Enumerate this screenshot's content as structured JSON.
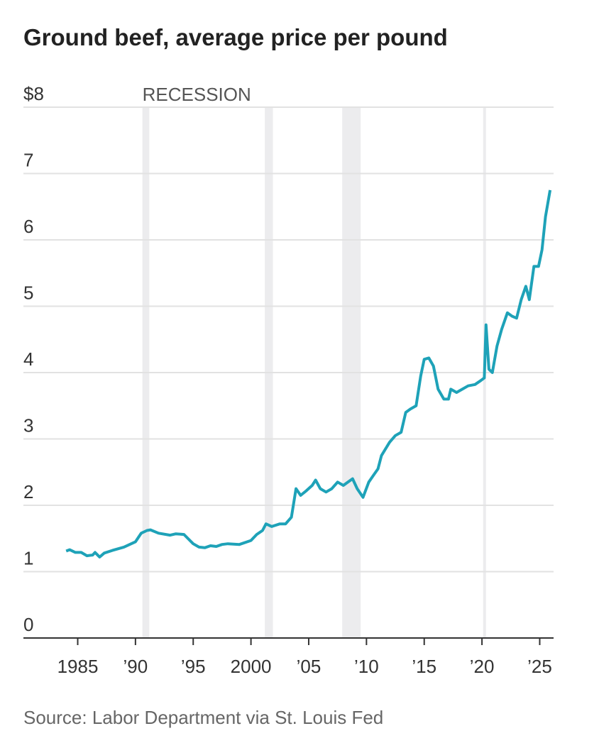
{
  "chart_data": {
    "type": "line",
    "title": "Ground beef, average price per pound",
    "source": "Source: Labor Department via St. Louis Fed",
    "recession_label": "RECESSION",
    "recessions": [
      [
        1990.6,
        1991.2
      ],
      [
        2001.2,
        2001.9
      ],
      [
        2007.9,
        2009.5
      ],
      [
        2020.1,
        2020.35
      ]
    ],
    "xlim": [
      1980.3,
      2026.2
    ],
    "ylim": [
      0,
      8
    ],
    "xticks": [
      1985,
      {
        "value": 1990,
        "label": "’90"
      },
      {
        "value": 1995,
        "label": "’95"
      },
      2000,
      {
        "value": 2005,
        "label": "’05"
      },
      {
        "value": 2010,
        "label": "’10"
      },
      {
        "value": 2015,
        "label": "’15"
      },
      {
        "value": 2020,
        "label": "’20"
      },
      {
        "value": 2025,
        "label": "’25"
      }
    ],
    "yticks": [
      0,
      1,
      2,
      3,
      4,
      5,
      6,
      7,
      {
        "value": 8,
        "label": "$8"
      }
    ],
    "grid": true,
    "series": [
      {
        "name": "Ground beef",
        "color": "#1ea2b8",
        "x": [
          1984.0,
          1984.3,
          1984.8,
          1985.3,
          1985.8,
          1986.3,
          1986.5,
          1986.9,
          1987.3,
          1988.0,
          1989.0,
          1990.0,
          1990.5,
          1991.0,
          1991.3,
          1992.0,
          1993.0,
          1993.5,
          1994.2,
          1995.0,
          1995.5,
          1996.0,
          1996.5,
          1997.0,
          1997.5,
          1998.0,
          1999.0,
          2000.0,
          2000.5,
          2001.0,
          2001.3,
          2001.8,
          2002.5,
          2003.0,
          2003.5,
          2003.9,
          2004.3,
          2004.8,
          2005.3,
          2005.6,
          2006.0,
          2006.5,
          2007.0,
          2007.5,
          2008.0,
          2008.4,
          2008.8,
          2009.2,
          2009.7,
          2010.2,
          2010.6,
          2011.0,
          2011.3,
          2012.0,
          2012.5,
          2013.0,
          2013.4,
          2013.8,
          2014.3,
          2014.7,
          2015.0,
          2015.4,
          2015.8,
          2016.2,
          2016.7,
          2017.1,
          2017.3,
          2017.8,
          2018.3,
          2018.8,
          2019.4,
          2019.9,
          2020.2,
          2020.35,
          2020.6,
          2020.9,
          2021.3,
          2021.7,
          2022.2,
          2022.6,
          2023.0,
          2023.4,
          2023.8,
          2024.1,
          2024.5,
          2024.9,
          2025.2,
          2025.5,
          2025.9
        ],
        "values": [
          1.31,
          1.33,
          1.29,
          1.29,
          1.24,
          1.25,
          1.29,
          1.22,
          1.28,
          1.32,
          1.37,
          1.45,
          1.58,
          1.62,
          1.63,
          1.58,
          1.55,
          1.57,
          1.56,
          1.42,
          1.37,
          1.36,
          1.39,
          1.38,
          1.41,
          1.42,
          1.41,
          1.47,
          1.56,
          1.62,
          1.72,
          1.68,
          1.72,
          1.72,
          1.82,
          2.25,
          2.15,
          2.22,
          2.3,
          2.38,
          2.25,
          2.2,
          2.25,
          2.35,
          2.3,
          2.35,
          2.4,
          2.25,
          2.12,
          2.35,
          2.45,
          2.55,
          2.75,
          2.95,
          3.05,
          3.1,
          3.4,
          3.45,
          3.5,
          3.95,
          4.2,
          4.22,
          4.1,
          3.75,
          3.6,
          3.6,
          3.75,
          3.7,
          3.75,
          3.8,
          3.82,
          3.88,
          3.92,
          4.72,
          4.05,
          4.0,
          4.4,
          4.65,
          4.9,
          4.85,
          4.82,
          5.1,
          5.3,
          5.1,
          5.6,
          5.6,
          5.85,
          6.35,
          6.75
        ]
      }
    ]
  }
}
